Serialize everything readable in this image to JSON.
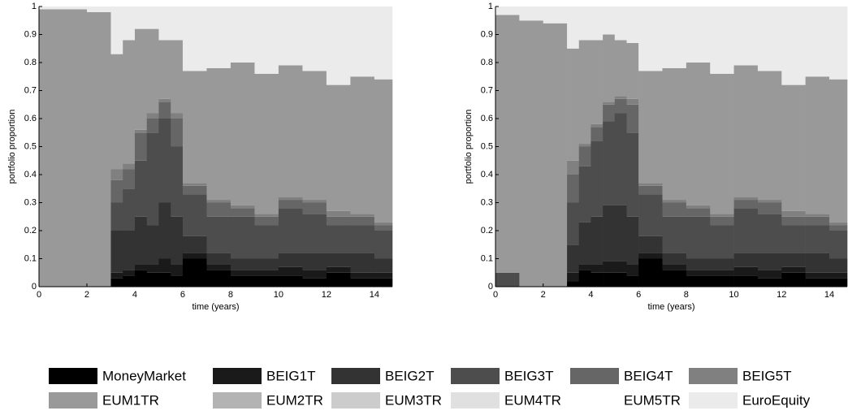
{
  "chart_data": [
    {
      "type": "stacked-area-step",
      "x_label": "time (years)",
      "y_label": "portfolio proportion",
      "x": [
        0,
        1,
        2,
        3,
        3.5,
        4,
        4.5,
        5,
        5.5,
        6,
        7,
        8,
        9,
        10,
        11,
        12,
        13,
        14
      ],
      "xlim": [
        0,
        14.75
      ],
      "xticks": [
        0,
        2,
        4,
        6,
        8,
        10,
        12,
        14
      ],
      "ylim": [
        0,
        1
      ],
      "yticks": [
        0,
        0.1,
        0.2,
        0.3,
        0.4,
        0.5,
        0.6,
        0.7,
        0.8,
        0.9,
        1
      ],
      "series": [
        {
          "name": "MoneyMarket",
          "color": "#000000",
          "values": [
            0,
            0,
            0,
            0.03,
            0.04,
            0.06,
            0.05,
            0.05,
            0.04,
            0.1,
            0.06,
            0.04,
            0.04,
            0.04,
            0.03,
            0.05,
            0.03,
            0.03
          ]
        },
        {
          "name": "BEIG1T",
          "color": "#1a1a1a",
          "values": [
            0,
            0,
            0,
            0.02,
            0.02,
            0.02,
            0.03,
            0.05,
            0.04,
            0.02,
            0.02,
            0.02,
            0.02,
            0.03,
            0.03,
            0.02,
            0.02,
            0.02
          ]
        },
        {
          "name": "BEIG2T",
          "color": "#333333",
          "values": [
            0,
            0,
            0,
            0.15,
            0.14,
            0.17,
            0.14,
            0.2,
            0.17,
            0.06,
            0.04,
            0.04,
            0.04,
            0.05,
            0.06,
            0.05,
            0.07,
            0.05
          ]
        },
        {
          "name": "BEIG3T",
          "color": "#4d4d4d",
          "values": [
            0,
            0,
            0,
            0.1,
            0.15,
            0.2,
            0.33,
            0.3,
            0.25,
            0.15,
            0.13,
            0.15,
            0.12,
            0.16,
            0.14,
            0.1,
            0.1,
            0.1
          ]
        },
        {
          "name": "BEIG4T",
          "color": "#666666",
          "values": [
            0,
            0,
            0,
            0.08,
            0.07,
            0.1,
            0.05,
            0.06,
            0.1,
            0.03,
            0.05,
            0.03,
            0.03,
            0.03,
            0.04,
            0.03,
            0.03,
            0.02
          ]
        },
        {
          "name": "BEIG5T",
          "color": "#808080",
          "values": [
            0,
            0,
            0,
            0.04,
            0.02,
            0.01,
            0.02,
            0.01,
            0.02,
            0.01,
            0.01,
            0.01,
            0.01,
            0.01,
            0.01,
            0.02,
            0.01,
            0.01
          ]
        },
        {
          "name": "EUM1TR",
          "color": "#999999",
          "values": [
            0.99,
            0.99,
            0.98,
            0.41,
            0.44,
            0.36,
            0.3,
            0.21,
            0.26,
            0.4,
            0.47,
            0.51,
            0.5,
            0.47,
            0.46,
            0.45,
            0.49,
            0.51
          ]
        },
        {
          "name": "EUM2TR",
          "color": "#b3b3b3",
          "values": [
            0,
            0,
            0,
            0,
            0,
            0,
            0,
            0,
            0,
            0,
            0,
            0,
            0,
            0,
            0,
            0,
            0,
            0
          ]
        },
        {
          "name": "EUM3TR",
          "color": "#cccccc",
          "values": [
            0,
            0,
            0,
            0,
            0,
            0,
            0,
            0,
            0,
            0,
            0,
            0,
            0,
            0,
            0,
            0,
            0,
            0
          ]
        },
        {
          "name": "EUM4TR",
          "color": "#e0e0e0",
          "values": [
            0,
            0,
            0,
            0,
            0,
            0,
            0,
            0,
            0,
            0,
            0,
            0,
            0,
            0,
            0,
            0,
            0,
            0
          ]
        },
        {
          "name": "EUM5TR",
          "color": "#ffffff",
          "values": [
            0,
            0,
            0,
            0,
            0,
            0,
            0,
            0,
            0,
            0,
            0,
            0,
            0,
            0,
            0,
            0,
            0,
            0
          ]
        },
        {
          "name": "EuroEquity",
          "color": "#ebebeb",
          "values": [
            0.01,
            0.01,
            0.02,
            0.17,
            0.12,
            0.08,
            0.08,
            0.12,
            0.12,
            0.23,
            0.22,
            0.2,
            0.24,
            0.21,
            0.23,
            0.28,
            0.25,
            0.26
          ]
        }
      ]
    },
    {
      "type": "stacked-area-step",
      "x_label": "time (years)",
      "y_label": "portfolio proportion",
      "x": [
        0,
        1,
        2,
        3,
        3.5,
        4,
        4.5,
        5,
        5.5,
        6,
        7,
        8,
        9,
        10,
        11,
        12,
        13,
        14
      ],
      "xlim": [
        0,
        14.75
      ],
      "xticks": [
        0,
        2,
        4,
        6,
        8,
        10,
        12,
        14
      ],
      "ylim": [
        0,
        1
      ],
      "yticks": [
        0,
        0.1,
        0.2,
        0.3,
        0.4,
        0.5,
        0.6,
        0.7,
        0.8,
        0.9,
        1
      ],
      "series": [
        {
          "values": [
            0,
            0,
            0,
            0.02,
            0.06,
            0.05,
            0.05,
            0.05,
            0.04,
            0.1,
            0.06,
            0.04,
            0.04,
            0.04,
            0.03,
            0.05,
            0.03,
            0.03
          ]
        },
        {
          "values": [
            0,
            0,
            0,
            0.03,
            0.02,
            0.03,
            0.04,
            0.04,
            0.04,
            0.02,
            0.02,
            0.02,
            0.02,
            0.03,
            0.03,
            0.02,
            0.02,
            0.02
          ]
        },
        {
          "values": [
            0,
            0,
            0,
            0.1,
            0.15,
            0.17,
            0.2,
            0.2,
            0.17,
            0.06,
            0.04,
            0.04,
            0.04,
            0.05,
            0.06,
            0.05,
            0.07,
            0.05
          ]
        },
        {
          "values": [
            0.05,
            0,
            0,
            0.15,
            0.2,
            0.27,
            0.3,
            0.33,
            0.3,
            0.15,
            0.13,
            0.15,
            0.12,
            0.16,
            0.14,
            0.1,
            0.1,
            0.1
          ]
        },
        {
          "values": [
            0,
            0,
            0,
            0.1,
            0.07,
            0.05,
            0.06,
            0.05,
            0.1,
            0.03,
            0.05,
            0.03,
            0.03,
            0.03,
            0.04,
            0.03,
            0.03,
            0.02
          ]
        },
        {
          "values": [
            0,
            0,
            0,
            0.05,
            0.01,
            0.01,
            0.01,
            0.01,
            0.02,
            0.01,
            0.01,
            0.01,
            0.01,
            0.01,
            0.01,
            0.02,
            0.01,
            0.01
          ]
        },
        {
          "values": [
            0.92,
            0.95,
            0.94,
            0.4,
            0.37,
            0.3,
            0.24,
            0.2,
            0.2,
            0.4,
            0.47,
            0.51,
            0.5,
            0.47,
            0.46,
            0.45,
            0.49,
            0.51
          ]
        },
        {
          "values": [
            0,
            0,
            0,
            0,
            0,
            0,
            0,
            0,
            0,
            0,
            0,
            0,
            0,
            0,
            0,
            0,
            0,
            0
          ]
        },
        {
          "values": [
            0,
            0,
            0,
            0,
            0,
            0,
            0,
            0,
            0,
            0,
            0,
            0,
            0,
            0,
            0,
            0,
            0,
            0
          ]
        },
        {
          "values": [
            0,
            0,
            0,
            0,
            0,
            0,
            0,
            0,
            0,
            0,
            0,
            0,
            0,
            0,
            0,
            0,
            0,
            0
          ]
        },
        {
          "values": [
            0,
            0,
            0,
            0,
            0,
            0,
            0,
            0,
            0,
            0,
            0,
            0,
            0,
            0,
            0,
            0,
            0,
            0
          ]
        },
        {
          "values": [
            0.03,
            0.05,
            0.06,
            0.15,
            0.12,
            0.12,
            0.1,
            0.12,
            0.13,
            0.23,
            0.22,
            0.2,
            0.24,
            0.21,
            0.23,
            0.28,
            0.25,
            0.26
          ]
        }
      ]
    }
  ]
}
